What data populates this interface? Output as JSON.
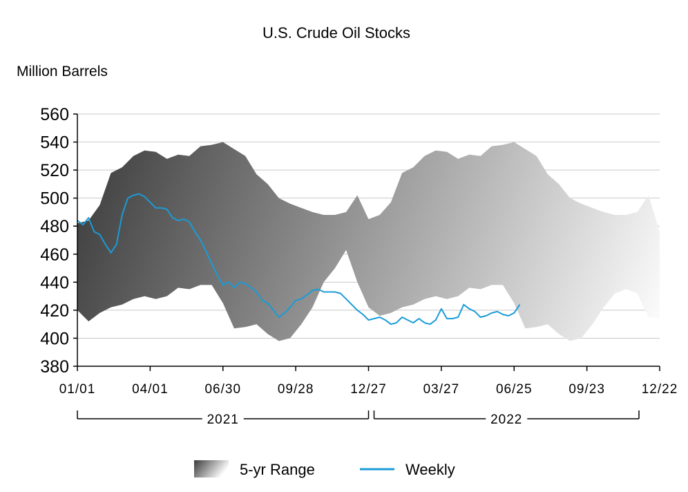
{
  "chart_data": {
    "type": "area",
    "title": "U.S. Crude Oil Stocks",
    "ylabel": "Million Barrels",
    "xlabel": "",
    "ylim": [
      380,
      560
    ],
    "yticks": [
      "560",
      "540",
      "520",
      "500",
      "480",
      "460",
      "440",
      "420",
      "400",
      "380"
    ],
    "ytick_values": [
      560,
      540,
      520,
      500,
      480,
      460,
      440,
      420,
      400,
      380
    ],
    "x_domain_weeks": [
      0,
      104
    ],
    "xticks": [
      {
        "week": 0,
        "label": "01/01"
      },
      {
        "week": 13,
        "label": "04/01"
      },
      {
        "week": 26,
        "label": "06/30"
      },
      {
        "week": 39,
        "label": "09/28"
      },
      {
        "week": 52,
        "label": "12/27"
      },
      {
        "week": 65,
        "label": "03/27"
      },
      {
        "week": 78,
        "label": "06/25"
      },
      {
        "week": 91,
        "label": "09/23"
      },
      {
        "week": 104,
        "label": "12/22"
      }
    ],
    "years": [
      {
        "label": "2021",
        "start_week": 0,
        "end_week": 52
      },
      {
        "label": "2022",
        "start_week": 52,
        "end_week": 104
      }
    ],
    "grid": true,
    "legend_position": "bottom",
    "series": [
      {
        "name": "5-yr Range",
        "kind": "band",
        "color_dark": "#3a3a3a",
        "color_light": "#ffffff",
        "weeks": [
          0,
          2,
          4,
          6,
          8,
          10,
          12,
          14,
          16,
          18,
          20,
          22,
          24,
          26,
          28,
          30,
          32,
          34,
          36,
          38,
          40,
          42,
          44,
          46,
          48,
          50,
          52,
          54,
          56,
          58,
          60,
          62,
          64,
          66,
          68,
          70,
          72,
          74,
          76,
          78,
          80,
          82,
          84,
          86,
          88,
          90,
          92,
          94,
          96,
          98,
          100,
          102,
          104
        ],
        "high": [
          482,
          484,
          495,
          518,
          522,
          530,
          534,
          533,
          528,
          531,
          530,
          537,
          538,
          540,
          535,
          530,
          517,
          510,
          500,
          496,
          493,
          490,
          488,
          488,
          490,
          502,
          485,
          488,
          497,
          518,
          522,
          530,
          534,
          533,
          528,
          531,
          530,
          537,
          538,
          540,
          535,
          530,
          517,
          510,
          500,
          496,
          493,
          490,
          488,
          488,
          490,
          502,
          476
        ],
        "low": [
          420,
          412,
          418,
          422,
          424,
          428,
          430,
          428,
          430,
          436,
          435,
          438,
          438,
          425,
          407,
          408,
          410,
          403,
          398,
          400,
          410,
          422,
          440,
          450,
          463,
          440,
          422,
          416,
          418,
          422,
          424,
          428,
          430,
          428,
          430,
          436,
          435,
          438,
          438,
          425,
          407,
          408,
          410,
          403,
          398,
          400,
          410,
          422,
          432,
          435,
          432,
          415,
          414
        ]
      },
      {
        "name": "Weekly",
        "kind": "line",
        "color": "#1a9bd7",
        "weeks": [
          0,
          1,
          2,
          3,
          4,
          5,
          6,
          7,
          8,
          9,
          10,
          11,
          12,
          13,
          14,
          15,
          16,
          17,
          18,
          19,
          20,
          21,
          22,
          23,
          24,
          25,
          26,
          27,
          28,
          29,
          30,
          31,
          32,
          33,
          34,
          35,
          36,
          37,
          38,
          39,
          40,
          41,
          42,
          43,
          44,
          45,
          46,
          47,
          48,
          49,
          50,
          51,
          52,
          53,
          54,
          55,
          56,
          57,
          58,
          59,
          60,
          61,
          62,
          63,
          64,
          65,
          66,
          67,
          68,
          69,
          70,
          71,
          72,
          73,
          74,
          75,
          76,
          77,
          78,
          79
        ],
        "values": [
          484,
          481,
          486,
          476,
          474,
          467,
          461,
          467,
          488,
          500,
          502,
          503,
          501,
          497,
          493,
          493,
          492,
          486,
          484,
          485,
          483,
          476,
          470,
          462,
          453,
          445,
          438,
          440,
          436,
          440,
          439,
          436,
          433,
          427,
          425,
          420,
          415,
          418,
          422,
          427,
          428,
          431,
          434,
          435,
          433,
          433,
          433,
          432,
          428,
          424,
          420,
          417,
          413,
          414,
          415,
          413,
          410,
          411,
          415,
          413,
          411,
          414,
          411,
          410,
          413,
          421,
          414,
          414,
          415,
          424,
          421,
          419,
          415,
          416,
          418,
          419,
          417,
          416,
          418,
          424
        ]
      }
    ],
    "legend": [
      {
        "label": "5-yr Range",
        "kind": "band"
      },
      {
        "label": "Weekly",
        "kind": "line"
      }
    ]
  }
}
